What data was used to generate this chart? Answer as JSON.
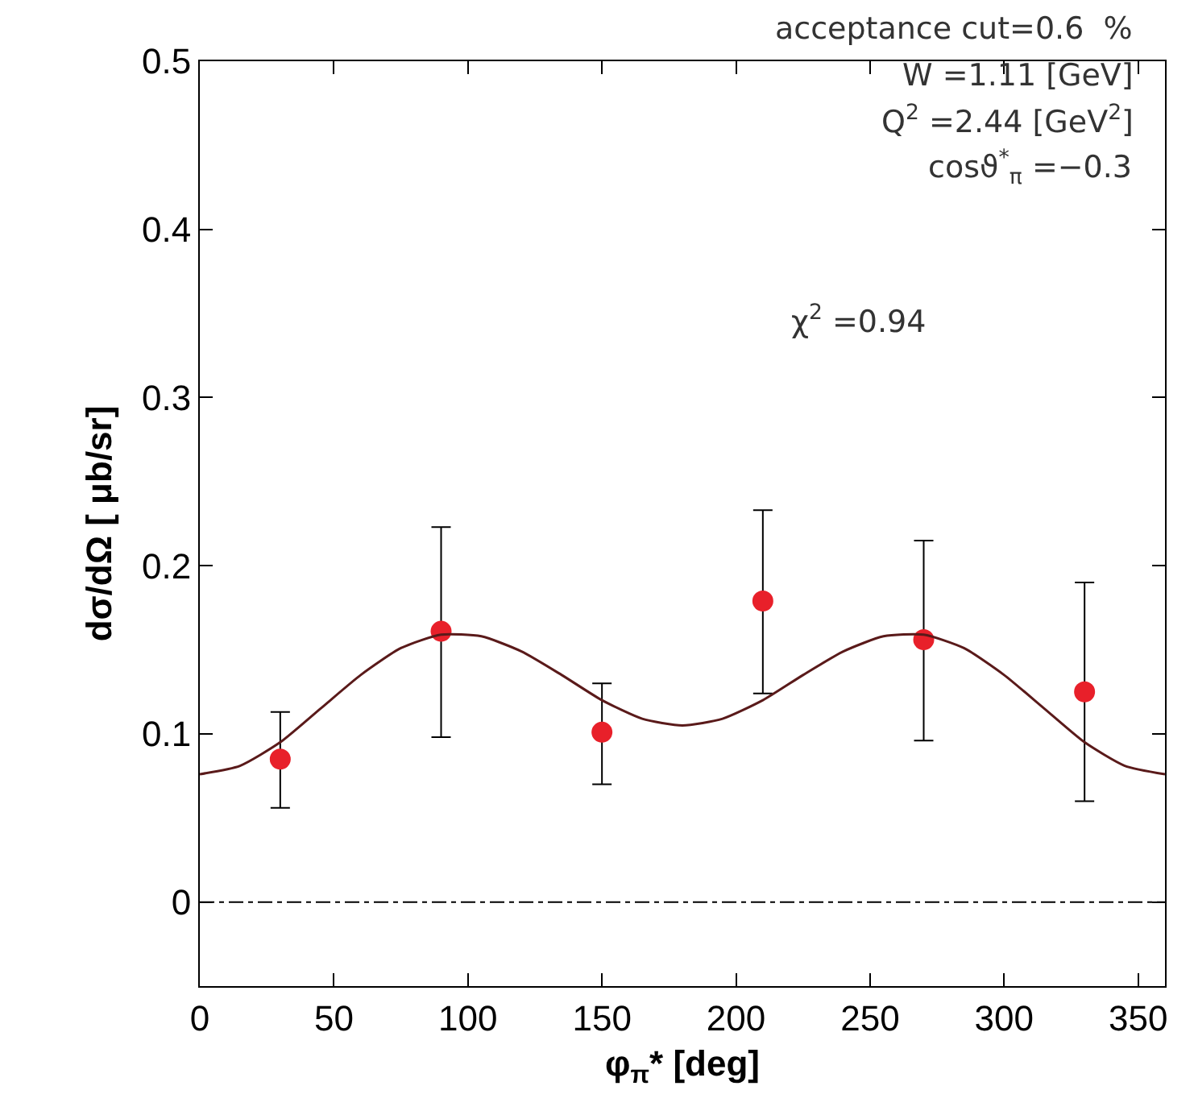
{
  "chart_data": {
    "type": "scatter",
    "xlabel": "φ$_{π}$* [deg]",
    "ylabel": "dσ/dΩ [ μb/sr]",
    "xlim": [
      0,
      360
    ],
    "ylim": [
      -0.05,
      0.5
    ],
    "xticks": [
      0,
      50,
      100,
      150,
      200,
      250,
      300,
      350
    ],
    "yticks": [
      0,
      0.1,
      0.2,
      0.3,
      0.4,
      0.5
    ],
    "grid": false,
    "marker": "circle",
    "series": [
      {
        "color": "#e8202a",
        "x": [
          30,
          90,
          150,
          210,
          270,
          330
        ],
        "values": [
          0.085,
          0.161,
          0.101,
          0.179,
          0.156,
          0.125
        ],
        "errors": [
          [
            0.056,
            0.113
          ],
          [
            0.098,
            0.223
          ],
          [
            0.07,
            0.13
          ],
          [
            0.124,
            0.233
          ],
          [
            0.096,
            0.215
          ],
          [
            0.06,
            0.19
          ]
        ]
      },
      {
        "type": "line",
        "color": "#5a1a1a",
        "marker": "none",
        "line_style": "solid",
        "x": [
          0,
          15,
          30,
          45,
          60,
          75,
          90,
          105,
          120,
          135,
          150,
          165,
          180,
          195,
          210,
          225,
          240,
          255,
          270,
          285,
          300,
          315,
          330,
          345,
          360
        ],
        "values": [
          0.076,
          0.081,
          0.095,
          0.115,
          0.135,
          0.151,
          0.159,
          0.158,
          0.149,
          0.135,
          0.12,
          0.109,
          0.105,
          0.109,
          0.12,
          0.135,
          0.149,
          0.158,
          0.159,
          0.151,
          0.135,
          0.115,
          0.095,
          0.081,
          0.076
        ]
      }
    ],
    "ref_lines": [
      {
        "axis": "y",
        "value": 0,
        "color": "#000000",
        "line_style": "dashed"
      }
    ],
    "annotations": [
      "acceptance cut=0.6  %",
      "W =1.11 [GeV]",
      "Q$^{2}$ =2.44 [GeV$^{2}$]",
      "cosϑ$^{*}$$_{π}$ =−0.3",
      "χ$^{2}$ =0.94"
    ]
  }
}
